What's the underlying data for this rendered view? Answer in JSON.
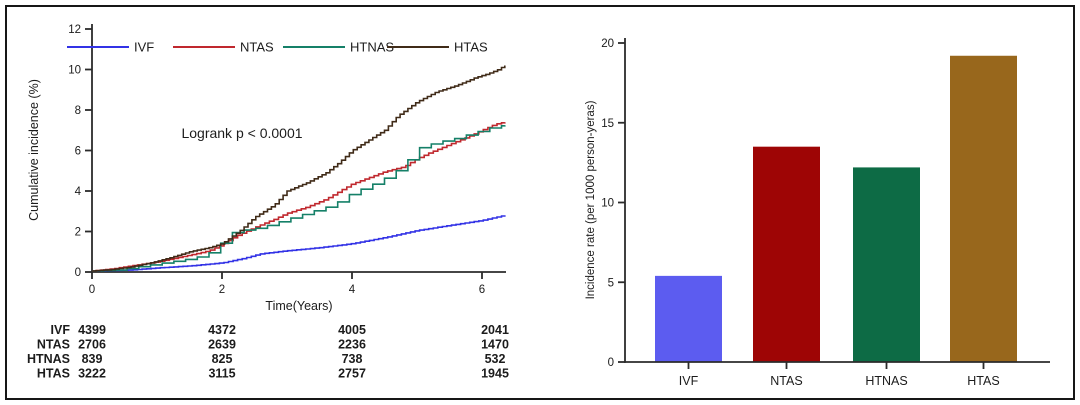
{
  "figure": {
    "description": "Two-panel epidemiology figure: cumulative incidence curves with number-at-risk table (left) and incidence rate bar chart (right)",
    "axis_color": "#2b2b2b",
    "text_color": "#1c1c1c"
  },
  "chart_data": [
    {
      "type": "line",
      "subtype": "cumulative-incidence-step",
      "title": "",
      "xlabel": "Time(Years)",
      "ylabel": "Cumulative incidence (%)",
      "annotation": "Logrank p < 0.0001",
      "xlim": [
        0,
        6.35
      ],
      "ylim": [
        0,
        12
      ],
      "xticks": [
        0,
        2,
        4,
        6
      ],
      "yticks": [
        0,
        2,
        4,
        6,
        8,
        10,
        12
      ],
      "grid": false,
      "legend_position": "top-inside",
      "series": [
        {
          "name": "IVF",
          "color": "#3232e6",
          "step_res": 0.07,
          "points": [
            [
              0,
              0.05
            ],
            [
              0.3,
              0.07
            ],
            [
              0.6,
              0.1
            ],
            [
              1,
              0.2
            ],
            [
              1.5,
              0.3
            ],
            [
              2,
              0.45
            ],
            [
              2.3,
              0.65
            ],
            [
              2.6,
              0.9
            ],
            [
              3,
              1.05
            ],
            [
              3.5,
              1.2
            ],
            [
              4,
              1.4
            ],
            [
              4.5,
              1.7
            ],
            [
              5,
              2.05
            ],
            [
              5.3,
              2.2
            ],
            [
              5.6,
              2.35
            ],
            [
              6,
              2.55
            ],
            [
              6.35,
              2.8
            ]
          ]
        },
        {
          "name": "NTAS",
          "color": "#c0282e",
          "step_res": 0.07,
          "points": [
            [
              0,
              0.05
            ],
            [
              0.3,
              0.15
            ],
            [
              0.6,
              0.3
            ],
            [
              1,
              0.5
            ],
            [
              1.3,
              0.7
            ],
            [
              1.6,
              0.9
            ],
            [
              1.8,
              1.05
            ],
            [
              2,
              1.35
            ],
            [
              2.2,
              1.75
            ],
            [
              2.5,
              2.2
            ],
            [
              2.8,
              2.6
            ],
            [
              3,
              2.9
            ],
            [
              3.3,
              3.2
            ],
            [
              3.6,
              3.6
            ],
            [
              4,
              4.35
            ],
            [
              4.5,
              4.95
            ],
            [
              4.8,
              5.2
            ],
            [
              5,
              5.6
            ],
            [
              5.2,
              5.9
            ],
            [
              5.5,
              6.3
            ],
            [
              5.8,
              6.7
            ],
            [
              6,
              7.0
            ],
            [
              6.2,
              7.3
            ],
            [
              6.35,
              7.4
            ]
          ]
        },
        {
          "name": "HTNAS",
          "color": "#158068",
          "step_res": 0.18,
          "points": [
            [
              0,
              0.05
            ],
            [
              0.4,
              0.1
            ],
            [
              0.8,
              0.3
            ],
            [
              1.2,
              0.5
            ],
            [
              1.5,
              0.65
            ],
            [
              1.7,
              0.8
            ],
            [
              1.9,
              1.1
            ],
            [
              2,
              1.5
            ],
            [
              2.1,
              1.9
            ],
            [
              2.3,
              2.05
            ],
            [
              2.6,
              2.2
            ],
            [
              3,
              2.6
            ],
            [
              3.4,
              3.0
            ],
            [
              3.7,
              3.3
            ],
            [
              4,
              3.9
            ],
            [
              4.3,
              4.3
            ],
            [
              4.6,
              4.8
            ],
            [
              4.8,
              5.3
            ],
            [
              5,
              6.1
            ],
            [
              5.3,
              6.4
            ],
            [
              5.6,
              6.6
            ],
            [
              5.9,
              6.9
            ],
            [
              6.1,
              7.1
            ],
            [
              6.35,
              7.25
            ]
          ]
        },
        {
          "name": "HTAS",
          "color": "#402b18",
          "step_res": 0.06,
          "points": [
            [
              0,
              0.05
            ],
            [
              0.3,
              0.12
            ],
            [
              0.6,
              0.25
            ],
            [
              0.9,
              0.45
            ],
            [
              1.2,
              0.7
            ],
            [
              1.5,
              1.0
            ],
            [
              1.8,
              1.2
            ],
            [
              2,
              1.4
            ],
            [
              2.3,
              2.1
            ],
            [
              2.5,
              2.7
            ],
            [
              2.8,
              3.3
            ],
            [
              3,
              4.0
            ],
            [
              3.3,
              4.4
            ],
            [
              3.6,
              4.9
            ],
            [
              3.8,
              5.4
            ],
            [
              4,
              6.0
            ],
            [
              4.2,
              6.4
            ],
            [
              4.5,
              7.0
            ],
            [
              4.7,
              7.7
            ],
            [
              5,
              8.4
            ],
            [
              5.3,
              8.9
            ],
            [
              5.6,
              9.2
            ],
            [
              5.9,
              9.6
            ],
            [
              6.1,
              9.8
            ],
            [
              6.25,
              10.0
            ],
            [
              6.35,
              10.2
            ]
          ]
        }
      ],
      "risk_table": {
        "times": [
          0,
          2,
          4,
          6
        ],
        "rows": [
          {
            "name": "IVF",
            "counts": [
              "4399",
              "4372",
              "4005",
              "2041"
            ]
          },
          {
            "name": "NTAS",
            "counts": [
              "2706",
              "2639",
              "2236",
              "1470"
            ]
          },
          {
            "name": "HTNAS",
            "counts": [
              "839",
              "825",
              "738",
              "532"
            ]
          },
          {
            "name": "HTAS",
            "counts": [
              "3222",
              "3115",
              "2757",
              "1945"
            ]
          }
        ]
      }
    },
    {
      "type": "bar",
      "title": "",
      "categories": [
        "IVF",
        "NTAS",
        "HTNAS",
        "HTAS"
      ],
      "values": [
        5.4,
        13.5,
        12.2,
        19.2
      ],
      "bar_colors": [
        "#5c5cf0",
        "#9e0505",
        "#0d6b45",
        "#98671c"
      ],
      "xlabel": "",
      "ylabel": "Incidence rate (per 1000 person-yeras)",
      "ylim": [
        0,
        20
      ],
      "yticks": [
        0,
        5,
        10,
        15,
        20
      ],
      "grid": false,
      "legend_position": "none"
    }
  ]
}
